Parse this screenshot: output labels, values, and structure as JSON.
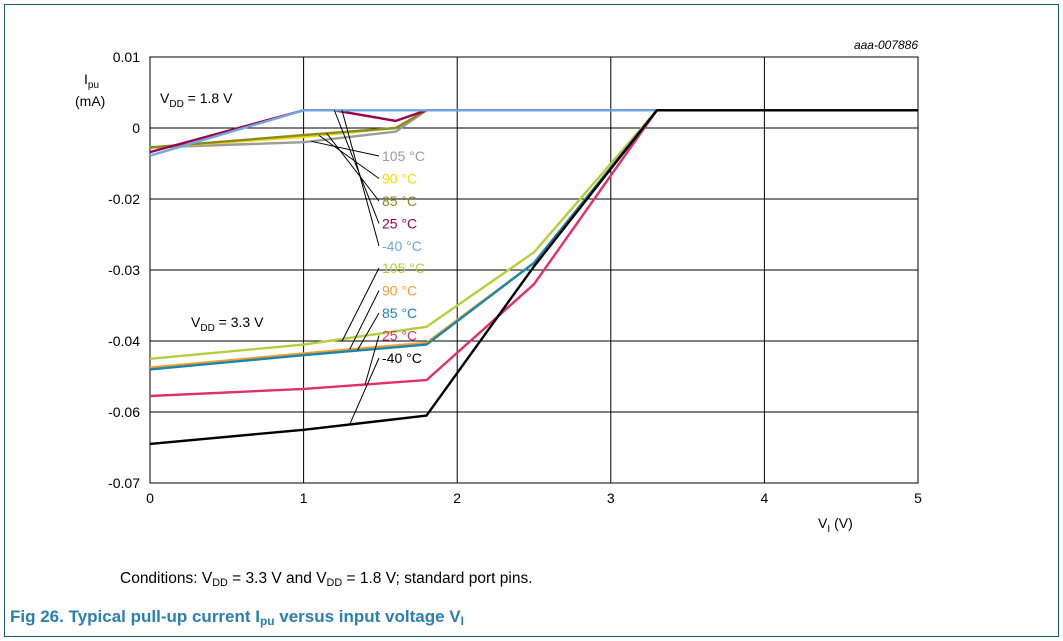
{
  "chart_data": {
    "type": "line",
    "figure_id": "aaa-007886",
    "y_label": "I",
    "y_label_sub": "pu",
    "y_unit": "(mA)",
    "x_label": "V",
    "x_label_sub": "I",
    "x_unit": "(V)",
    "xlim": [
      0,
      5
    ],
    "ylim": [
      -0.07,
      0.01
    ],
    "x_ticks": [
      "0",
      "1",
      "2",
      "3",
      "4",
      "5"
    ],
    "y_ticks": [
      "0.01",
      "0",
      "-0.02",
      "-0.03",
      "-0.04",
      "-0.06",
      "-0.07"
    ],
    "grid": true,
    "groups": [
      {
        "label_main": "V",
        "label_sub": "DD",
        "label_value": " = 1.8 V",
        "series": [
          {
            "name": "105  °C",
            "color": "#9b9b9b",
            "x": [
              0,
              1,
              1.6,
              1.8,
              5
            ],
            "y": [
              -0.0055,
              -0.004,
              -0.001,
              0.0025,
              0.0025
            ]
          },
          {
            "name": "90  °C",
            "color": "#f2dc00",
            "x": [
              0,
              1,
              1.6,
              1.8,
              5
            ],
            "y": [
              -0.0055,
              -0.0025,
              0,
              0.0025,
              0.0025
            ]
          },
          {
            "name": "85  °C",
            "color": "#8a8a20",
            "x": [
              0,
              1,
              1.6,
              1.8,
              5
            ],
            "y": [
              -0.0055,
              -0.002,
              0,
              0.0025,
              0.0025
            ]
          },
          {
            "name": "25  °C",
            "color": "#990050",
            "x": [
              0,
              1,
              1.2,
              1.6,
              1.8,
              5
            ],
            "y": [
              -0.0068,
              0.0025,
              0.0025,
              0.001,
              0.0025,
              0.0025
            ]
          },
          {
            "name": "-40  °C",
            "color": "#6fa8dc",
            "x": [
              0,
              1,
              1.8,
              5
            ],
            "y": [
              -0.0078,
              0.0025,
              0.0025,
              0.0025
            ]
          }
        ]
      },
      {
        "label_main": "V",
        "label_sub": "DD",
        "label_value": " = 3.3 V",
        "series": [
          {
            "name": "105 °C",
            "color": "#b5cf3c",
            "x": [
              0,
              1,
              1.8,
              2.5,
              3.3,
              5
            ],
            "y": [
              -0.045,
              -0.041,
              -0.038,
              -0.0275,
              0.0025,
              0.0025
            ]
          },
          {
            "name": "90  °C",
            "color": "#f0a030",
            "x": [
              0,
              1,
              1.8,
              2.5,
              3.3,
              5
            ],
            "y": [
              -0.0475,
              -0.0435,
              -0.0405,
              -0.029,
              0.0025,
              0.0025
            ]
          },
          {
            "name": "85  °C",
            "color": "#1a86b0",
            "x": [
              0,
              1,
              1.8,
              2.5,
              3.3,
              5
            ],
            "y": [
              -0.048,
              -0.044,
              -0.041,
              -0.029,
              0.0025,
              0.0025
            ]
          },
          {
            "name": "25  °C",
            "color": "#e0306a",
            "x": [
              0,
              1,
              1.8,
              2.5,
              3.3,
              5
            ],
            "y": [
              -0.0555,
              -0.0535,
              -0.051,
              -0.032,
              0.0025,
              0.0025
            ]
          },
          {
            "name": "-40  °C",
            "color": "#000000",
            "x": [
              0,
              1,
              1.8,
              2.5,
              3.3,
              5
            ],
            "y": [
              -0.0645,
              -0.0625,
              -0.0605,
              -0.0295,
              0.0025,
              0.0025
            ]
          }
        ]
      }
    ]
  },
  "conditions": {
    "prefix": "Conditions: V",
    "sub1": "DD",
    "mid": " = 3.3 V and V",
    "sub2": "DD",
    "suffix": " = 1.8 V; standard port pins."
  },
  "caption": {
    "prefix": "Fig 26.   Typical pull-up current I",
    "sub1": "pu",
    "mid": " versus input voltage V",
    "sub2": "I"
  }
}
